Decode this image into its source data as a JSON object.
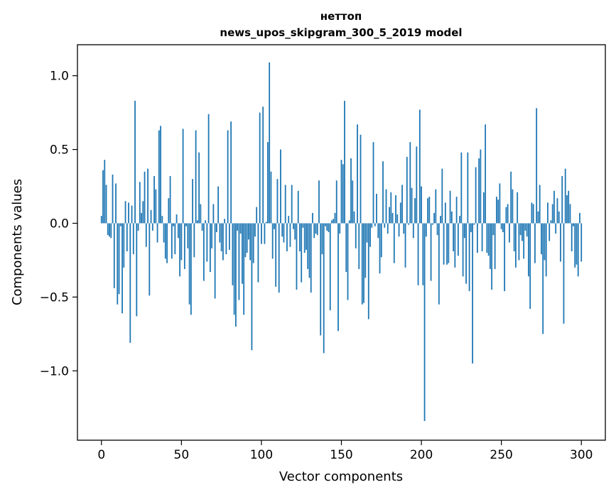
{
  "chart_data": {
    "type": "bar",
    "title": "неттоп",
    "subtitle": "news_upos_skipgram_300_5_2019 model",
    "xlabel": "Vector components",
    "ylabel": "Components values",
    "xlim": [
      -15,
      315
    ],
    "ylim": [
      -1.47,
      1.21
    ],
    "x_ticks": [
      0,
      50,
      100,
      150,
      200,
      250,
      300
    ],
    "x_tick_labels": [
      "0",
      "50",
      "100",
      "150",
      "200",
      "250",
      "300"
    ],
    "y_ticks": [
      -1.0,
      -0.5,
      0.0,
      0.5,
      1.0
    ],
    "y_tick_labels": [
      "−1.0",
      "−0.5",
      "0.0",
      "0.5",
      "1.0"
    ],
    "grid": false,
    "bar_color": "#1f77b4",
    "values": [
      0.05,
      0.36,
      0.43,
      0.26,
      -0.08,
      -0.09,
      -0.1,
      0.33,
      -0.44,
      0.27,
      -0.55,
      -0.48,
      -0.02,
      -0.61,
      -0.3,
      0.15,
      -0.19,
      0.14,
      -0.81,
      0.12,
      -0.21,
      0.83,
      -0.63,
      -0.05,
      0.28,
      0.07,
      0.15,
      0.35,
      -0.16,
      0.37,
      -0.49,
      0.09,
      -0.05,
      0.32,
      0.23,
      -0.13,
      0.63,
      0.66,
      0.05,
      -0.13,
      -0.24,
      -0.27,
      0.17,
      0.32,
      -0.24,
      -0.02,
      -0.21,
      0.06,
      -0.1,
      -0.36,
      -0.25,
      0.64,
      -0.31,
      -0.02,
      -0.17,
      -0.55,
      -0.62,
      0.3,
      -0.23,
      0.63,
      0.02,
      0.48,
      0.13,
      -0.05,
      -0.39,
      0.02,
      -0.26,
      0.74,
      -0.33,
      -0.17,
      0.13,
      -0.51,
      -0.06,
      0.25,
      -0.13,
      -0.19,
      -0.25,
      0.03,
      -0.21,
      0.63,
      -0.18,
      0.69,
      -0.42,
      -0.62,
      -0.7,
      -0.05,
      -0.52,
      -0.07,
      -0.41,
      -0.62,
      -0.23,
      -0.2,
      -0.11,
      -0.25,
      -0.86,
      -0.27,
      -0.09,
      0.11,
      -0.4,
      0.75,
      -0.14,
      0.79,
      -0.14,
      0.01,
      0.55,
      1.09,
      0.35,
      -0.24,
      -0.04,
      -0.43,
      0.3,
      -0.47,
      0.5,
      -0.09,
      -0.13,
      0.26,
      -0.19,
      0.05,
      -0.16,
      0.26,
      -0.04,
      -0.11,
      -0.45,
      0.22,
      -0.19,
      -0.4,
      -0.03,
      -0.2,
      -0.18,
      -0.31,
      -0.37,
      -0.47,
      0.07,
      -0.1,
      -0.07,
      -0.08,
      0.29,
      -0.76,
      -0.21,
      -0.88,
      -0.02,
      -0.05,
      -0.06,
      -0.59,
      0.02,
      0.03,
      0.07,
      0.29,
      -0.73,
      -0.07,
      0.43,
      0.4,
      0.83,
      -0.33,
      -0.52,
      0.02,
      0.44,
      0.29,
      0.08,
      -0.17,
      0.67,
      -0.31,
      0.6,
      -0.55,
      -0.54,
      -0.37,
      -0.13,
      -0.65,
      -0.16,
      -0.03,
      0.55,
      -0.02,
      0.2,
      -0.1,
      -0.34,
      -0.23,
      0.42,
      -0.03,
      0.23,
      -0.07,
      0.11,
      0.21,
      0.07,
      -0.27,
      0.19,
      0.06,
      -0.09,
      0.14,
      0.26,
      -0.07,
      -0.3,
      0.45,
      -0.01,
      0.55,
      0.24,
      -0.1,
      0.17,
      0.52,
      -0.42,
      0.77,
      0.25,
      -0.42,
      -1.34,
      -0.09,
      0.17,
      0.18,
      -0.39,
      -0.01,
      0.07,
      0.23,
      -0.08,
      -0.55,
      0.05,
      0.37,
      -0.28,
      0.14,
      -0.28,
      -0.27,
      0.22,
      0.08,
      -0.19,
      -0.3,
      0.18,
      -0.22,
      0.05,
      0.48,
      -0.36,
      -0.1,
      -0.41,
      0.48,
      -0.46,
      -0.06,
      -0.95,
      -0.01,
      0.38,
      -0.2,
      0.44,
      0.5,
      -0.19,
      0.21,
      0.67,
      -0.2,
      -0.22,
      -0.31,
      -0.45,
      -0.08,
      -0.31,
      0.18,
      0.16,
      0.27,
      -0.04,
      -0.06,
      -0.46,
      0.11,
      0.13,
      -0.13,
      0.35,
      0.23,
      -0.19,
      -0.3,
      0.21,
      -0.25,
      -0.08,
      -0.12,
      -0.24,
      -0.05,
      -0.09,
      -0.36,
      -0.58,
      0.14,
      0.13,
      -0.27,
      0.78,
      0.08,
      0.26,
      -0.21,
      -0.75,
      -0.25,
      -0.36,
      0.14,
      -0.12,
      0.02,
      0.13,
      0.22,
      -0.07,
      0.17,
      0.08,
      -0.26,
      0.32,
      -0.68,
      0.37,
      0.19,
      0.22,
      0.13,
      -0.19,
      -0.02,
      -0.3,
      -0.28,
      -0.36,
      0.07,
      -0.26
    ]
  }
}
